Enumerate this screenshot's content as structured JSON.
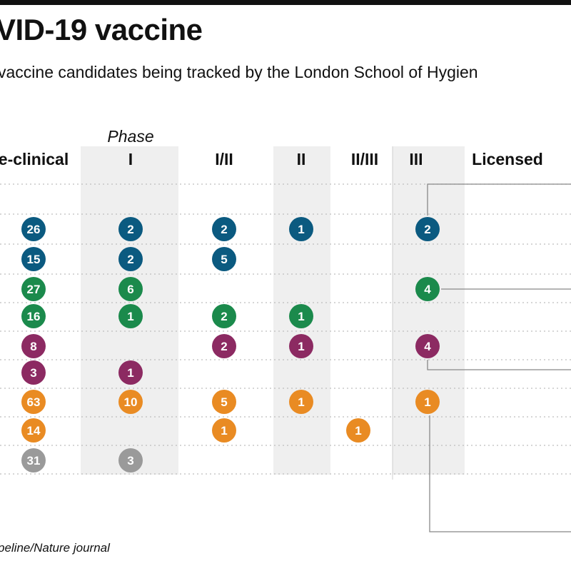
{
  "title": "VID-19 vaccine",
  "subtitle": "vaccine candidates being tracked by the London School of Hygien",
  "source": "peline/Nature journal",
  "colors": {
    "blue": "#0b5a80",
    "green": "#1b8a4c",
    "purple": "#8c2a62",
    "orange": "#e98b23",
    "gray": "#9a9a9a",
    "band": "#efefef",
    "connector": "#888888"
  },
  "chart_data": {
    "type": "table",
    "phase_label": "Phase",
    "columns": [
      "e-clinical",
      "I",
      "I/II",
      "II",
      "II/III",
      "III",
      "Licensed"
    ],
    "rows": [
      {
        "color": "blue",
        "values": [
          26,
          2,
          2,
          1,
          null,
          2,
          null
        ]
      },
      {
        "color": "blue",
        "values": [
          15,
          2,
          5,
          null,
          null,
          null,
          null
        ]
      },
      {
        "color": "green",
        "values": [
          27,
          6,
          null,
          null,
          null,
          4,
          null
        ]
      },
      {
        "color": "green",
        "values": [
          16,
          1,
          2,
          1,
          null,
          null,
          null
        ]
      },
      {
        "color": "purple",
        "values": [
          8,
          null,
          2,
          1,
          null,
          4,
          null
        ]
      },
      {
        "color": "purple",
        "values": [
          3,
          1,
          null,
          null,
          null,
          null,
          null
        ]
      },
      {
        "color": "orange",
        "values": [
          63,
          10,
          5,
          1,
          null,
          1,
          null
        ]
      },
      {
        "color": "orange",
        "values": [
          14,
          null,
          1,
          null,
          1,
          null,
          null
        ]
      },
      {
        "color": "gray",
        "values": [
          31,
          3,
          null,
          null,
          null,
          null,
          null
        ]
      }
    ]
  }
}
